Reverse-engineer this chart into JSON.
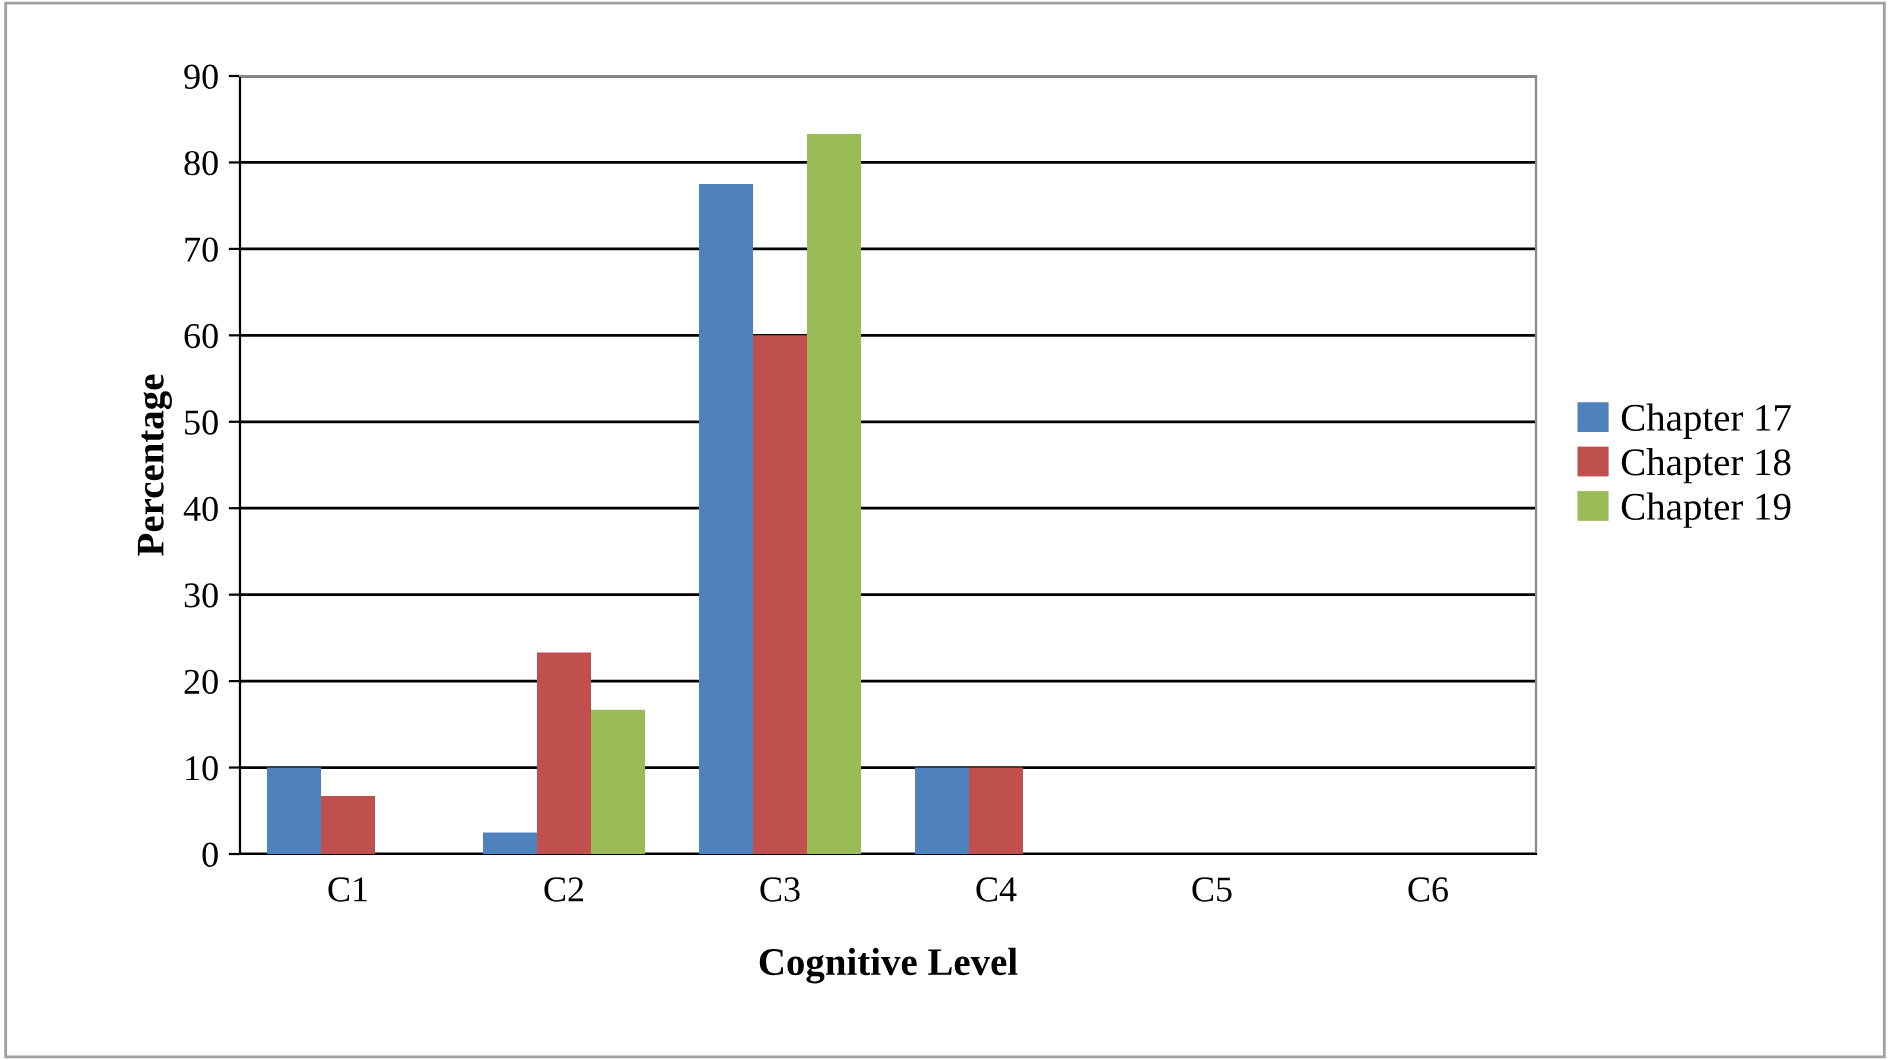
{
  "chart_data": {
    "type": "bar",
    "xlabel": "Cognitive Level",
    "ylabel": "Percentage",
    "categories": [
      "C1",
      "C2",
      "C3",
      "C4",
      "C5",
      "C6"
    ],
    "series": [
      {
        "name": "Chapter 17",
        "color": "#4f81bd",
        "values": [
          10,
          2.5,
          77.5,
          10,
          0,
          0
        ]
      },
      {
        "name": "Chapter 18",
        "color": "#c0504d",
        "values": [
          6.7,
          23.3,
          60,
          10,
          0,
          0
        ]
      },
      {
        "name": "Chapter 19",
        "color": "#9bbb59",
        "values": [
          0,
          16.7,
          83.3,
          0,
          0,
          0
        ]
      }
    ],
    "ylim": [
      0,
      90
    ],
    "yticks": [
      0,
      10,
      20,
      30,
      40,
      50,
      60,
      70,
      80,
      90
    ],
    "grid": "y",
    "legend": "right"
  }
}
